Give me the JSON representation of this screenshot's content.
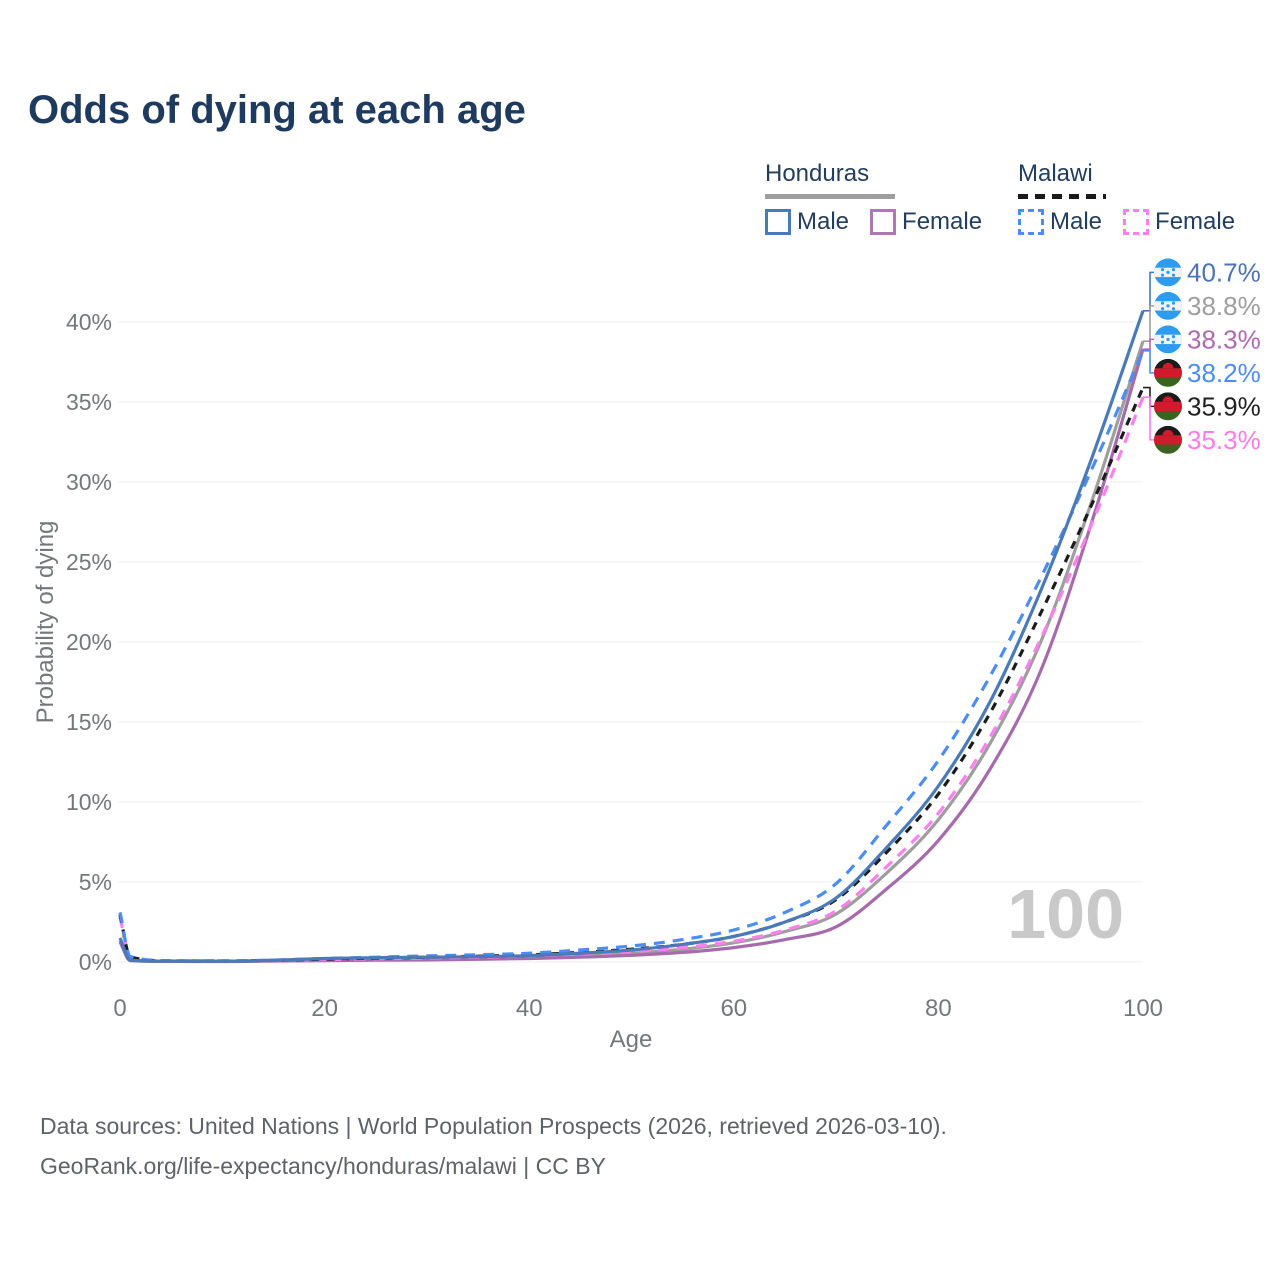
{
  "title": "Odds of dying at each age",
  "watermark": "100",
  "legend": {
    "groups": [
      {
        "label": "Honduras",
        "line_style": "solid",
        "swatch_color": "#9e9e9e",
        "items": [
          {
            "label": "Male",
            "color": "#4a7ab8"
          },
          {
            "label": "Female",
            "color": "#b077b4"
          }
        ]
      },
      {
        "label": "Malawi",
        "line_style": "dashed",
        "swatch_color": "#1a1a1a",
        "items": [
          {
            "label": "Male",
            "color": "#4b8cf5"
          },
          {
            "label": "Female",
            "color": "#ff7ff0"
          }
        ]
      }
    ]
  },
  "axes": {
    "x": {
      "label": "Age",
      "ticks": [
        "0",
        "20",
        "40",
        "60",
        "80",
        "100"
      ],
      "tick_values": [
        0,
        20,
        40,
        60,
        80,
        100
      ]
    },
    "y": {
      "label": "Probability of dying",
      "ticks": [
        "0%",
        "5%",
        "10%",
        "15%",
        "20%",
        "25%",
        "30%",
        "35%",
        "40%"
      ],
      "tick_values": [
        0,
        5,
        10,
        15,
        20,
        25,
        30,
        35,
        40
      ]
    }
  },
  "footer": {
    "line1": "Data sources: United Nations | World Population Prospects (2026, retrieved 2026-03-10).",
    "line2": "GeoRank.org/life-expectancy/honduras/malawi | CC BY"
  },
  "chart_data": {
    "type": "line",
    "title": "Odds of dying at each age",
    "xlabel": "Age",
    "ylabel": "Probability of dying",
    "x_range": [
      0,
      100
    ],
    "y_range_percent": [
      0,
      42
    ],
    "grid": "horizontal-only",
    "legend_position": "top-right",
    "ages": [
      0,
      1,
      5,
      10,
      15,
      20,
      25,
      30,
      35,
      40,
      45,
      50,
      55,
      60,
      65,
      70,
      75,
      80,
      85,
      90,
      95,
      100
    ],
    "series": [
      {
        "name": "Honduras Both sexes",
        "country": "Honduras",
        "sex": "both",
        "color": "#9e9e9e",
        "dash": null,
        "flag": "honduras",
        "end_value": 38.8,
        "end_label": "38.8%",
        "label_color": "#9e9e9e",
        "values": [
          1.35,
          0.1,
          0.04,
          0.04,
          0.08,
          0.15,
          0.18,
          0.2,
          0.24,
          0.3,
          0.4,
          0.55,
          0.8,
          1.2,
          1.9,
          3.0,
          5.6,
          8.9,
          13.6,
          20.0,
          28.8,
          38.8
        ]
      },
      {
        "name": "Honduras Female",
        "country": "Honduras",
        "sex": "female",
        "color": "#a66bab",
        "dash": null,
        "flag": "honduras",
        "end_value": 38.3,
        "end_label": "38.3%",
        "label_color": "#b168b1",
        "values": [
          1.25,
          0.09,
          0.04,
          0.03,
          0.06,
          0.09,
          0.11,
          0.13,
          0.17,
          0.22,
          0.3,
          0.42,
          0.6,
          0.9,
          1.4,
          2.2,
          4.6,
          7.6,
          12.0,
          18.2,
          27.5,
          38.3
        ]
      },
      {
        "name": "Malawi Female",
        "country": "Malawi",
        "sex": "female",
        "color": "#ff7ff0",
        "dash": "11 8",
        "flag": "malawi",
        "end_value": 35.3,
        "end_label": "35.3%",
        "label_color": "#ff7ae8",
        "values": [
          2.8,
          0.3,
          0.07,
          0.06,
          0.09,
          0.15,
          0.2,
          0.25,
          0.3,
          0.38,
          0.5,
          0.65,
          0.9,
          1.3,
          2.0,
          3.2,
          6.0,
          9.3,
          14.0,
          20.2,
          27.4,
          35.3
        ]
      },
      {
        "name": "Malawi Both sexes",
        "country": "Malawi",
        "sex": "both",
        "color": "#1c1c1c",
        "dash": "8 7",
        "flag": "malawi",
        "end_value": 35.9,
        "end_label": "35.9%",
        "label_color": "#212121",
        "values": [
          2.95,
          0.32,
          0.07,
          0.06,
          0.1,
          0.18,
          0.24,
          0.3,
          0.36,
          0.45,
          0.6,
          0.8,
          1.1,
          1.6,
          2.5,
          3.9,
          6.9,
          10.5,
          15.5,
          21.8,
          28.6,
          35.9
        ]
      },
      {
        "name": "Malawi Male",
        "country": "Malawi",
        "sex": "male",
        "color": "#4b8cf5",
        "dash": "11 8",
        "flag": "malawi",
        "end_value": 38.2,
        "end_label": "38.2%",
        "label_color": "#4b8cf5",
        "values": [
          3.1,
          0.35,
          0.08,
          0.07,
          0.12,
          0.22,
          0.3,
          0.38,
          0.45,
          0.55,
          0.75,
          1.0,
          1.4,
          2.0,
          3.1,
          4.9,
          8.6,
          12.6,
          17.8,
          24.0,
          30.8,
          38.2
        ]
      },
      {
        "name": "Honduras Male",
        "country": "Honduras",
        "sex": "male",
        "color": "#4a7ab8",
        "dash": null,
        "flag": "honduras",
        "end_value": 40.7,
        "end_label": "40.7%",
        "label_color": "#4a74b8",
        "values": [
          1.5,
          0.12,
          0.05,
          0.05,
          0.1,
          0.22,
          0.27,
          0.3,
          0.33,
          0.4,
          0.55,
          0.75,
          1.1,
          1.6,
          2.5,
          4.0,
          7.2,
          11.0,
          16.2,
          23.2,
          31.5,
          40.7
        ]
      }
    ]
  }
}
